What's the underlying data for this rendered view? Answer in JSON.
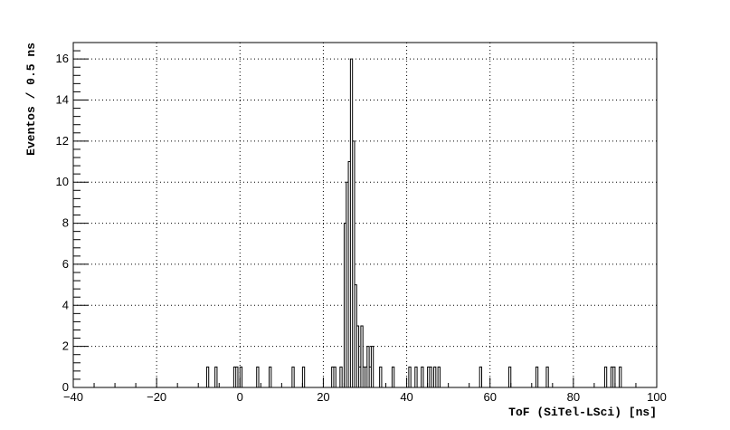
{
  "chart_data": {
    "type": "bar",
    "title": "",
    "xlabel": "ToF (SiTel-LSci) [ns]",
    "ylabel": "Eventos / 0.5 ns",
    "xlim": [
      -40,
      100
    ],
    "ylim": [
      0,
      16.8
    ],
    "grid": true,
    "bin_width": 0.5,
    "x_ticks": [
      -40,
      -20,
      0,
      20,
      40,
      60,
      80,
      100
    ],
    "y_ticks": [
      0,
      2,
      4,
      6,
      8,
      10,
      12,
      14,
      16
    ],
    "bins": [
      {
        "x": -8.0,
        "y": 1
      },
      {
        "x": -6.0,
        "y": 1
      },
      {
        "x": -1.5,
        "y": 1
      },
      {
        "x": -1.0,
        "y": 1
      },
      {
        "x": 0.0,
        "y": 1
      },
      {
        "x": 4.0,
        "y": 1
      },
      {
        "x": 7.0,
        "y": 1
      },
      {
        "x": 12.5,
        "y": 1
      },
      {
        "x": 15.0,
        "y": 1
      },
      {
        "x": 22.0,
        "y": 1
      },
      {
        "x": 22.5,
        "y": 1
      },
      {
        "x": 24.0,
        "y": 1
      },
      {
        "x": 25.0,
        "y": 8
      },
      {
        "x": 25.5,
        "y": 10
      },
      {
        "x": 26.0,
        "y": 11
      },
      {
        "x": 26.5,
        "y": 16
      },
      {
        "x": 27.0,
        "y": 12
      },
      {
        "x": 27.5,
        "y": 5
      },
      {
        "x": 28.0,
        "y": 3
      },
      {
        "x": 28.5,
        "y": 1
      },
      {
        "x": 29.0,
        "y": 3
      },
      {
        "x": 29.5,
        "y": 1
      },
      {
        "x": 30.0,
        "y": 1
      },
      {
        "x": 30.5,
        "y": 2
      },
      {
        "x": 31.0,
        "y": 1
      },
      {
        "x": 31.5,
        "y": 2
      },
      {
        "x": 33.5,
        "y": 1
      },
      {
        "x": 36.5,
        "y": 1
      },
      {
        "x": 40.5,
        "y": 1
      },
      {
        "x": 42.0,
        "y": 1
      },
      {
        "x": 43.5,
        "y": 1
      },
      {
        "x": 45.0,
        "y": 1
      },
      {
        "x": 45.5,
        "y": 1
      },
      {
        "x": 46.5,
        "y": 1
      },
      {
        "x": 47.5,
        "y": 1
      },
      {
        "x": 57.5,
        "y": 1
      },
      {
        "x": 64.5,
        "y": 1
      },
      {
        "x": 71.0,
        "y": 1
      },
      {
        "x": 73.5,
        "y": 1
      },
      {
        "x": 87.5,
        "y": 1
      },
      {
        "x": 89.0,
        "y": 1
      },
      {
        "x": 89.5,
        "y": 1
      },
      {
        "x": 91.0,
        "y": 1
      }
    ]
  }
}
